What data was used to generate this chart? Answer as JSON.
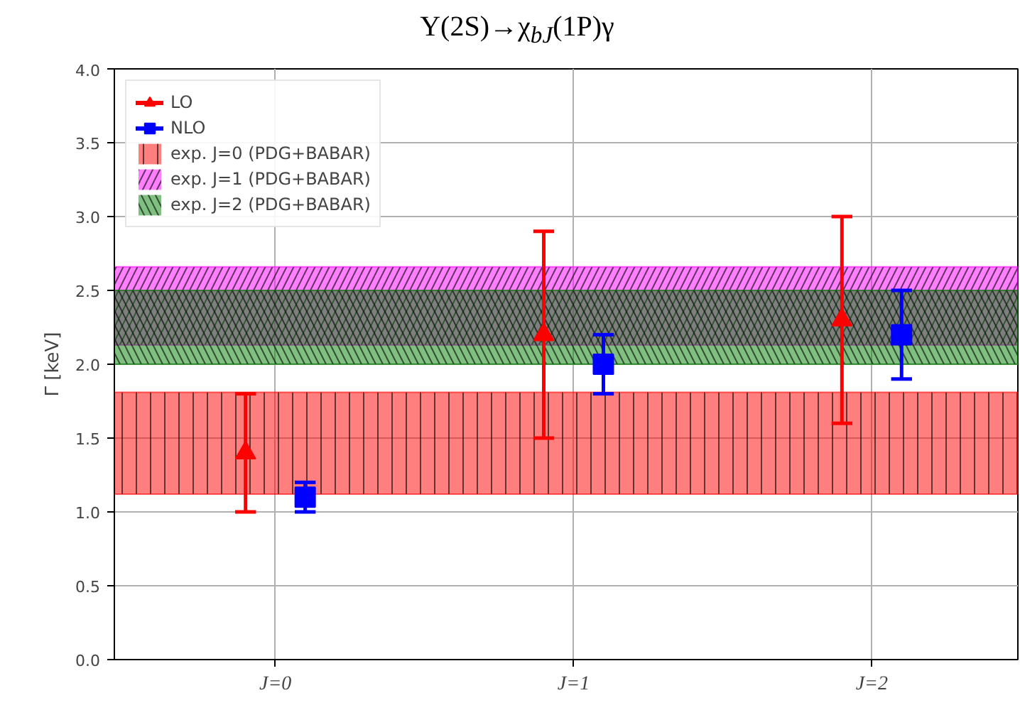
{
  "chart_data": {
    "type": "scatter",
    "title": "Υ(2S)→χ$_{bJ}$(1P)γ",
    "ylabel": "Γ [keV]",
    "categories": [
      "J=0",
      "J=1",
      "J=2"
    ],
    "ylim": [
      0,
      4
    ],
    "yticks": [
      {
        "value": 0,
        "label": "0.0"
      },
      {
        "value": 0.5,
        "label": "0.5"
      },
      {
        "value": 1,
        "label": "1.0"
      },
      {
        "value": 1.5,
        "label": "1.5"
      },
      {
        "value": 2,
        "label": "2.0"
      },
      {
        "value": 2.5,
        "label": "2.5"
      },
      {
        "value": 3,
        "label": "3.0"
      },
      {
        "value": 3.5,
        "label": "3.5"
      },
      {
        "value": 4,
        "label": "4.0"
      }
    ],
    "series": [
      {
        "name": "LO",
        "color": "#ff0000",
        "marker": "triangle",
        "values": [
          1.4,
          2.2,
          2.3
        ],
        "errors": [
          [
            1.0,
            1.8
          ],
          [
            1.5,
            2.9
          ],
          [
            1.6,
            3.0
          ]
        ]
      },
      {
        "name": "NLO",
        "color": "#0000ff",
        "marker": "square",
        "values": [
          1.1,
          2.0,
          2.2
        ],
        "errors": [
          [
            1.0,
            1.2
          ],
          [
            1.8,
            2.2
          ],
          [
            1.9,
            2.5
          ]
        ]
      }
    ],
    "bands": [
      {
        "axis": "y",
        "from": 1.12,
        "to": 1.81,
        "label": "exp. J=0 (PDG+BABAR)",
        "color": "#ff0000"
      },
      {
        "axis": "y",
        "from": 2.13,
        "to": 2.66,
        "label": "exp. J=1 (PDG+BABAR)",
        "color": "#ff00ff"
      },
      {
        "axis": "y",
        "from": 2.0,
        "to": 2.5,
        "label": "exp. J=2 (PDG+BABAR)",
        "color": "#008000"
      }
    ],
    "grid": true,
    "legend": "top left"
  }
}
